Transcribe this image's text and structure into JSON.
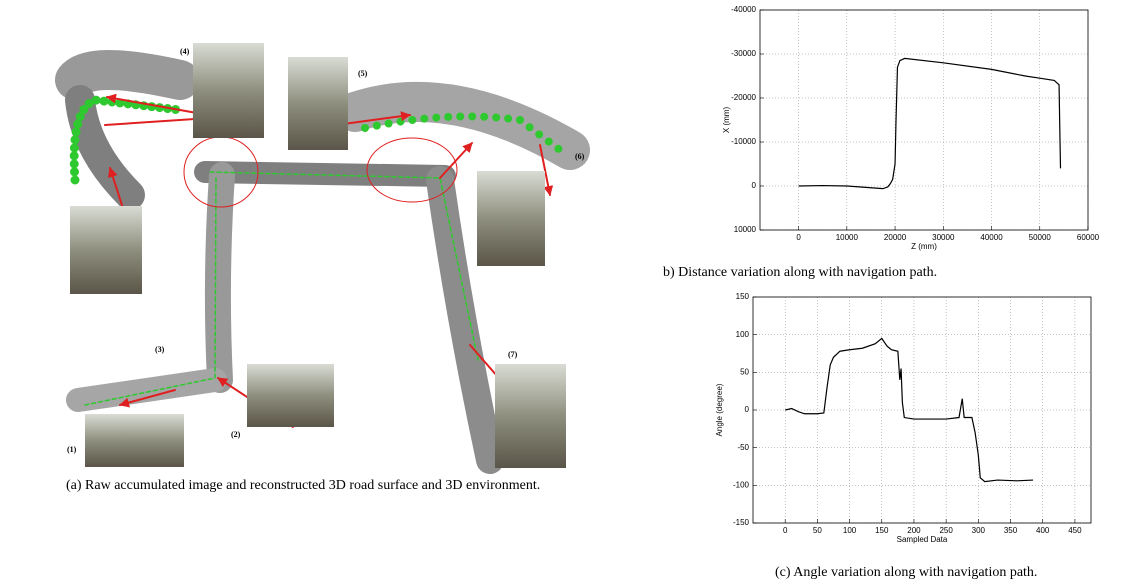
{
  "figure_a": {
    "labels": [
      "(1)",
      "(2)",
      "(3)",
      "(4)",
      "(5)",
      "(6)",
      "(7)"
    ],
    "caption": "(a) Raw accumulated image and reconstructed 3D road surface and 3D environment."
  },
  "chart_data": [
    {
      "type": "line",
      "caption": "b) Distance variation along with  navigation path.",
      "x_label": "Z (mm)",
      "y_label": "X (mm)",
      "color": "#000000",
      "x": [
        0,
        5000,
        10000,
        15000,
        17500,
        18500,
        19000,
        19500,
        20000,
        20200,
        20500,
        21000,
        22000,
        30000,
        40000,
        47000,
        50000,
        53000,
        54000,
        54200,
        54300
      ],
      "values": [
        0,
        -100,
        0,
        400,
        600,
        200,
        -500,
        -1500,
        -5000,
        -15000,
        -27000,
        -28500,
        -29000,
        -28000,
        -26500,
        -25000,
        -24500,
        -24000,
        -23000,
        -10000,
        -4000
      ],
      "xlim": [
        -8000,
        60000
      ],
      "xticks": [
        0,
        10000,
        20000,
        30000,
        40000,
        50000,
        60000
      ],
      "ylim": [
        10000,
        -40000
      ],
      "yticks": [
        10000,
        0,
        -10000,
        -20000,
        -30000,
        -40000
      ],
      "grid": true
    },
    {
      "type": "line",
      "caption": "(c) Angle variation along with navigation path.",
      "x_label": "Sampled Data",
      "y_label": "Angle (degree)",
      "color": "#000000",
      "x": [
        0,
        10,
        20,
        30,
        50,
        60,
        65,
        70,
        75,
        85,
        100,
        120,
        140,
        150,
        158,
        165,
        175,
        178,
        180,
        182,
        185,
        200,
        250,
        270,
        275,
        278,
        290,
        295,
        300,
        303,
        310,
        330,
        360,
        385
      ],
      "values": [
        0,
        2,
        -2,
        -5,
        -5,
        -4,
        30,
        60,
        70,
        78,
        80,
        82,
        88,
        95,
        85,
        80,
        78,
        40,
        55,
        10,
        -10,
        -12,
        -12,
        -10,
        15,
        -10,
        -10,
        -30,
        -60,
        -90,
        -95,
        -93,
        -94,
        -93
      ],
      "xlim": [
        -50,
        475
      ],
      "xticks": [
        0,
        50,
        100,
        150,
        200,
        250,
        300,
        350,
        400,
        450
      ],
      "ylim": [
        -150,
        150
      ],
      "yticks": [
        -150,
        -100,
        -50,
        0,
        50,
        100,
        150
      ],
      "grid": true
    }
  ]
}
